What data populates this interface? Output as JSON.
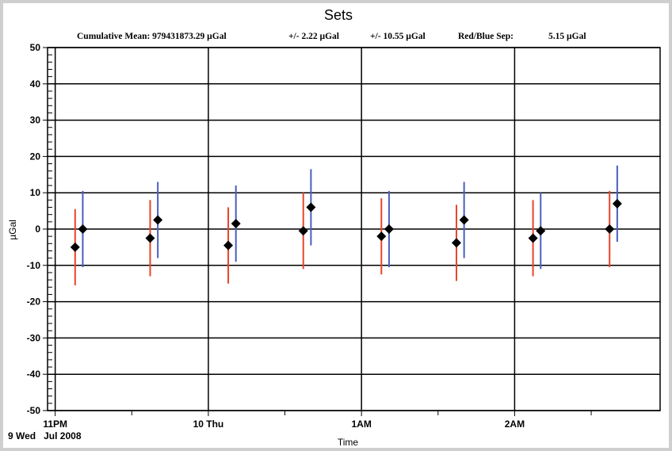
{
  "chart_data": {
    "type": "scatter",
    "title": "Sets",
    "subtitle": {
      "mean": "Cumulative Mean: 979431873.29 µGal",
      "err1": "+/- 2.22 µGal",
      "err2": "+/- 10.55 µGal",
      "sep": "Red/Blue Sep:",
      "sep_value": "5.15 µGal"
    },
    "ylabel": "µGal",
    "xlabel": "Time",
    "date_label": "9 Wed   Jul 2008",
    "ylim": [
      -50,
      50
    ],
    "yticks": [
      50,
      40,
      30,
      20,
      10,
      0,
      -10,
      -20,
      -30,
      -40,
      -50
    ],
    "xticks": [
      {
        "t": 23.0,
        "label": "11PM"
      },
      {
        "t": 24.0,
        "label": "10 Thu"
      },
      {
        "t": 25.0,
        "label": "1AM"
      },
      {
        "t": 26.0,
        "label": "2AM"
      }
    ],
    "xlim": [
      22.95,
      26.95
    ],
    "grid": true,
    "series": [
      {
        "color": "#e8442a",
        "points": [
          {
            "t": 23.13,
            "y": -5.0,
            "lo": -15.5,
            "hi": 5.5
          },
          {
            "t": 23.62,
            "y": -2.5,
            "lo": -13.0,
            "hi": 8.0
          },
          {
            "t": 24.13,
            "y": -4.5,
            "lo": -15.0,
            "hi": 6.0
          },
          {
            "t": 24.62,
            "y": -0.5,
            "lo": -11.0,
            "hi": 10.0
          },
          {
            "t": 25.13,
            "y": -2.0,
            "lo": -12.5,
            "hi": 8.5
          },
          {
            "t": 25.62,
            "y": -3.8,
            "lo": -14.3,
            "hi": 6.7
          },
          {
            "t": 26.12,
            "y": -2.5,
            "lo": -13.0,
            "hi": 8.0
          },
          {
            "t": 26.62,
            "y": 0.0,
            "lo": -10.5,
            "hi": 10.5
          }
        ]
      },
      {
        "color": "#4a5fc1",
        "points": [
          {
            "t": 23.18,
            "y": 0.0,
            "lo": -10.5,
            "hi": 10.5
          },
          {
            "t": 23.67,
            "y": 2.5,
            "lo": -8.0,
            "hi": 13.0
          },
          {
            "t": 24.18,
            "y": 1.5,
            "lo": -9.0,
            "hi": 12.0
          },
          {
            "t": 24.67,
            "y": 6.0,
            "lo": -4.5,
            "hi": 16.5
          },
          {
            "t": 25.18,
            "y": 0.0,
            "lo": -10.5,
            "hi": 10.5
          },
          {
            "t": 25.67,
            "y": 2.5,
            "lo": -8.0,
            "hi": 13.0
          },
          {
            "t": 26.17,
            "y": -0.5,
            "lo": -11.0,
            "hi": 10.0
          },
          {
            "t": 26.67,
            "y": 7.0,
            "lo": -3.5,
            "hi": 17.5
          }
        ]
      }
    ]
  }
}
